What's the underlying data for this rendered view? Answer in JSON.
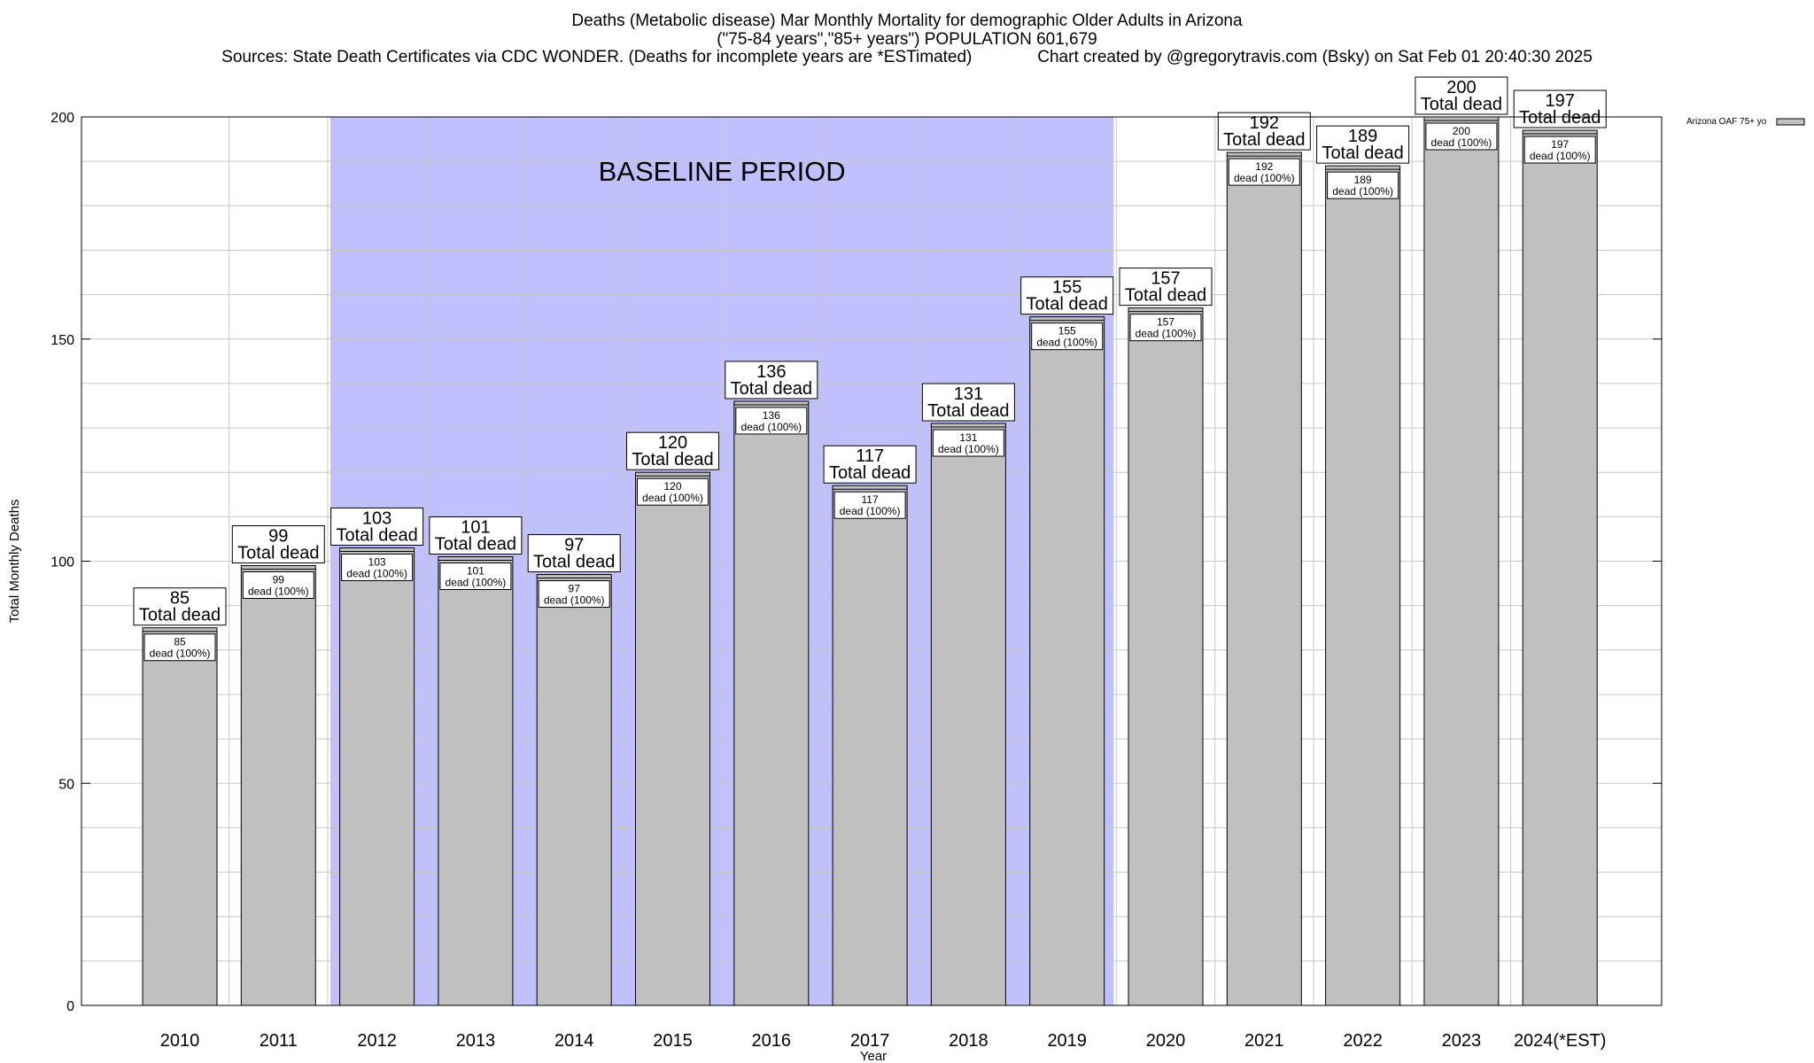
{
  "header": {
    "title_line1": "Deaths (Metabolic disease) Mar Monthly Mortality for demographic Older Adults in Arizona",
    "title_line2": "(\"75-84 years\",\"85+ years\") POPULATION 601,679",
    "title_line3": "Sources: State Death Certificates via CDC WONDER. (Deaths for incomplete years are *ESTimated)              Chart created by @gregorytravis.com (Bsky) on Sat Feb 01 20:40:30 2025"
  },
  "colors": {
    "bar_fill": "#c0c0c0",
    "baseline_fill": "#c0c0ff",
    "grid": "#c8c8c8"
  },
  "chart_data": {
    "type": "bar",
    "xlabel": "Year",
    "ylabel": "Total Monthly Deaths",
    "ylim": [
      0,
      200
    ],
    "yticks": [
      0,
      50,
      100,
      150,
      200
    ],
    "grid": true,
    "legend_position": "top-right",
    "categories": [
      "2010",
      "2011",
      "2012",
      "2013",
      "2014",
      "2015",
      "2016",
      "2017",
      "2018",
      "2019",
      "2020",
      "2021",
      "2022",
      "2023",
      "2024(*EST)"
    ],
    "series": [
      {
        "name": "Arizona OAF 75+ yo",
        "values": [
          85,
          99,
          103,
          101,
          97,
          120,
          136,
          117,
          131,
          155,
          157,
          192,
          189,
          200,
          197
        ]
      }
    ],
    "top_label_suffix": "Total dead",
    "inner_label_suffix": "dead (100%)",
    "shaded_region": {
      "label": "BASELINE PERIOD",
      "from_category": "2012",
      "to_category": "2019"
    }
  }
}
